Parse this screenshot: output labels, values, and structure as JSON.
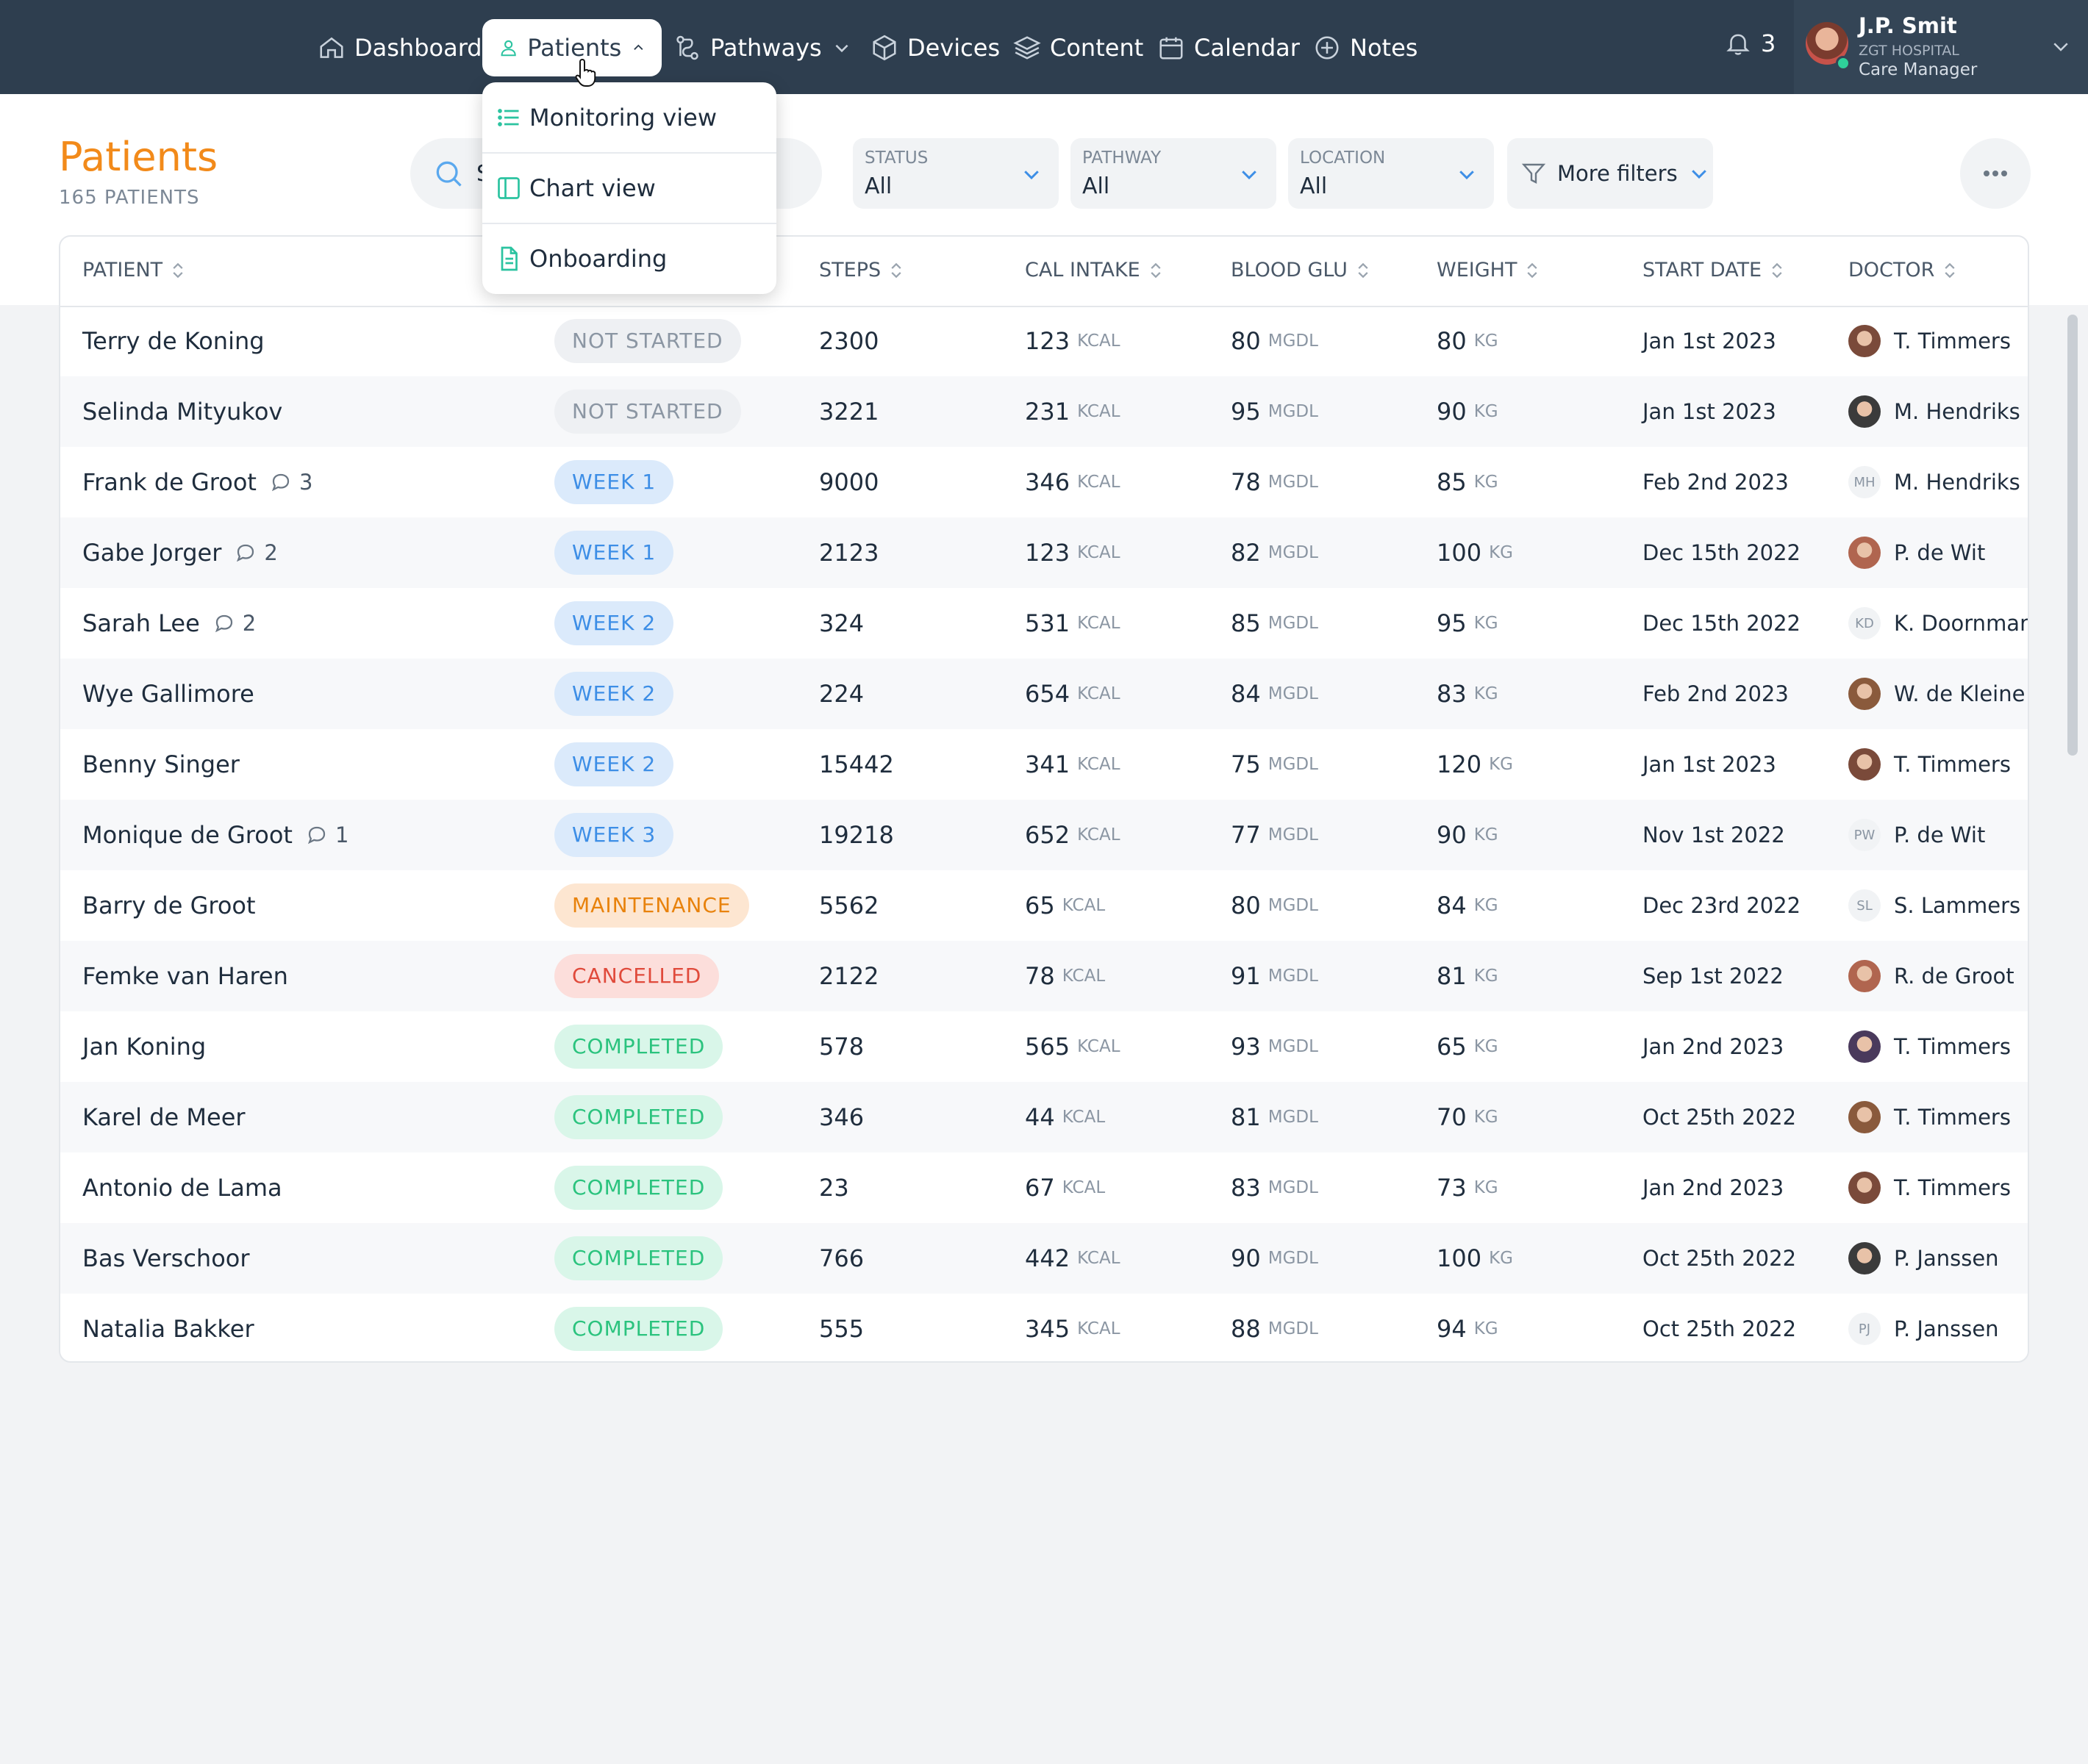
{
  "nav": {
    "dashboard": "Dashboard",
    "patients": "Patients",
    "pathways": "Pathways",
    "devices": "Devices",
    "content": "Content",
    "calendar": "Calendar",
    "notes": "Notes",
    "notifications_count": "3"
  },
  "user": {
    "name": "J.P. Smit",
    "organization": "ZGT HOSPITAL",
    "role": "Care Manager"
  },
  "patients_menu": {
    "items": [
      "Monitoring view",
      "Chart view",
      "Onboarding"
    ]
  },
  "page": {
    "title": "Patients",
    "count": "165 PATIENTS"
  },
  "search": {
    "value": "S"
  },
  "filters": [
    {
      "label": "STATUS",
      "value": "All"
    },
    {
      "label": "PATHWAY",
      "value": "All"
    },
    {
      "label": "LOCATION",
      "value": "All"
    }
  ],
  "more_filters": "More filters",
  "table": {
    "columns": [
      "PATIENT",
      "STEPS",
      "CAL INTAKE",
      "BLOOD GLU",
      "WEIGHT",
      "START DATE",
      "DOCTOR"
    ],
    "units": {
      "cal": "KCAL",
      "glu": "MGDL",
      "weight": "KG"
    },
    "rows": [
      {
        "name": "Terry de Koning",
        "comments": "",
        "status": "NOT STARTED",
        "status_color": "gray",
        "steps": "2300",
        "cal": "123",
        "glu": "80",
        "weight": "80",
        "start": "Jan 1st 2023",
        "doctor": "T. Timmers",
        "initials": ""
      },
      {
        "name": "Selinda Mityukov",
        "comments": "",
        "status": "NOT STARTED",
        "status_color": "gray",
        "steps": "3221",
        "cal": "231",
        "glu": "95",
        "weight": "90",
        "start": "Jan 1st 2023",
        "doctor": "M. Hendriks",
        "initials": ""
      },
      {
        "name": "Frank de Groot",
        "comments": "3",
        "status": "WEEK 1",
        "status_color": "blue",
        "steps": "9000",
        "cal": "346",
        "glu": "78",
        "weight": "85",
        "start": "Feb 2nd 2023",
        "doctor": "M. Hendriks",
        "initials": "MH"
      },
      {
        "name": "Gabe Jorger",
        "comments": "2",
        "status": "WEEK 1",
        "status_color": "blue",
        "steps": "2123",
        "cal": "123",
        "glu": "82",
        "weight": "100",
        "start": "Dec 15th 2022",
        "doctor": "P. de Wit",
        "initials": ""
      },
      {
        "name": "Sarah Lee",
        "comments": "2",
        "status": "WEEK 2",
        "status_color": "blue",
        "steps": "324",
        "cal": "531",
        "glu": "85",
        "weight": "95",
        "start": "Dec 15th 2022",
        "doctor": "K. Doornman",
        "initials": "KD"
      },
      {
        "name": "Wye Gallimore",
        "comments": "",
        "status": "WEEK 2",
        "status_color": "blue",
        "steps": "224",
        "cal": "654",
        "glu": "84",
        "weight": "83",
        "start": "Feb 2nd 2023",
        "doctor": "W. de Kleine",
        "initials": ""
      },
      {
        "name": "Benny Singer",
        "comments": "",
        "status": "WEEK 2",
        "status_color": "blue",
        "steps": "15442",
        "cal": "341",
        "glu": "75",
        "weight": "120",
        "start": "Jan 1st 2023",
        "doctor": "T. Timmers",
        "initials": ""
      },
      {
        "name": "Monique de Groot",
        "comments": "1",
        "status": "WEEK 3",
        "status_color": "blue",
        "steps": "19218",
        "cal": "652",
        "glu": "77",
        "weight": "90",
        "start": "Nov 1st 2022",
        "doctor": "P. de Wit",
        "initials": "PW"
      },
      {
        "name": "Barry de Groot",
        "comments": "",
        "status": "MAINTENANCE",
        "status_color": "orange",
        "steps": "5562",
        "cal": "65",
        "glu": "80",
        "weight": "84",
        "start": "Dec 23rd 2022",
        "doctor": "S. Lammers",
        "initials": "SL"
      },
      {
        "name": "Femke van Haren",
        "comments": "",
        "status": "CANCELLED",
        "status_color": "red",
        "steps": "2122",
        "cal": "78",
        "glu": "91",
        "weight": "81",
        "start": "Sep 1st 2022",
        "doctor": "R. de Groot",
        "initials": ""
      },
      {
        "name": "Jan Koning",
        "comments": "",
        "status": "COMPLETED",
        "status_color": "green",
        "steps": "578",
        "cal": "565",
        "glu": "93",
        "weight": "65",
        "start": "Jan 2nd 2023",
        "doctor": "T. Timmers",
        "initials": ""
      },
      {
        "name": "Karel de Meer",
        "comments": "",
        "status": "COMPLETED",
        "status_color": "green",
        "steps": "346",
        "cal": "44",
        "glu": "81",
        "weight": "70",
        "start": "Oct 25th 2022",
        "doctor": "T. Timmers",
        "initials": ""
      },
      {
        "name": "Antonio de Lama",
        "comments": "",
        "status": "COMPLETED",
        "status_color": "green",
        "steps": "23",
        "cal": "67",
        "glu": "83",
        "weight": "73",
        "start": "Jan 2nd 2023",
        "doctor": "T. Timmers",
        "initials": ""
      },
      {
        "name": "Bas Verschoor",
        "comments": "",
        "status": "COMPLETED",
        "status_color": "green",
        "steps": "766",
        "cal": "442",
        "glu": "90",
        "weight": "100",
        "start": "Oct 25th 2022",
        "doctor": "P. Janssen",
        "initials": ""
      },
      {
        "name": "Natalia Bakker",
        "comments": "",
        "status": "COMPLETED",
        "status_color": "green",
        "steps": "555",
        "cal": "345",
        "glu": "88",
        "weight": "94",
        "start": "Oct 25th 2022",
        "doctor": "P. Janssen",
        "initials": "PJ"
      }
    ]
  },
  "colors": {
    "nav_bg": "#2e3e4f",
    "accent_orange": "#f28a1a",
    "accent_teal": "#2bc3a0",
    "link_blue": "#3d8ee6"
  }
}
